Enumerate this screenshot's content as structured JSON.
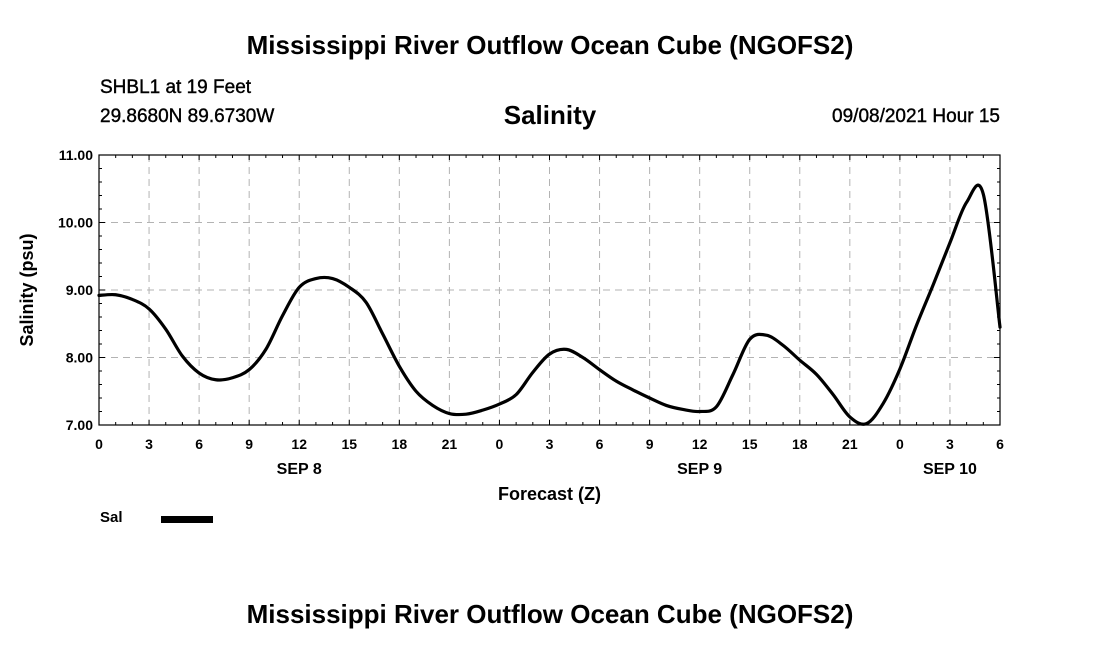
{
  "header": {
    "main_title": "Mississippi River Outflow Ocean Cube (NGOFS2)",
    "station": "SHBL1 at 19 Feet",
    "coords": "29.8680N  89.6730W",
    "chart_title": "Salinity",
    "timestamp": "09/08/2021 Hour 15"
  },
  "footer": {
    "title": "Mississippi River Outflow Ocean Cube (NGOFS2)"
  },
  "legend": {
    "label": "Sal"
  },
  "colors": {
    "line": "#000000",
    "grid": "#b3b3b3"
  },
  "chart_data": {
    "type": "line",
    "title": "Salinity",
    "xlabel": "Forecast (Z)",
    "ylabel": "Salinity (psu)",
    "xlim": [
      0,
      54
    ],
    "ylim": [
      7.0,
      11.0
    ],
    "grid": true,
    "legend_position": "bottom-left",
    "x_ticks": [
      0,
      3,
      6,
      9,
      12,
      15,
      18,
      21,
      24,
      27,
      30,
      33,
      36,
      39,
      42,
      45,
      48,
      51,
      54
    ],
    "x_tick_labels": [
      "0",
      "3",
      "6",
      "9",
      "12",
      "15",
      "18",
      "21",
      "0",
      "3",
      "6",
      "9",
      "12",
      "15",
      "18",
      "21",
      "0",
      "3",
      "6"
    ],
    "y_ticks": [
      7.0,
      8.0,
      9.0,
      10.0,
      11.0
    ],
    "y_tick_labels": [
      "7.00",
      "8.00",
      "9.00",
      "10.00",
      "11.00"
    ],
    "date_labels": [
      {
        "x": 12,
        "label": "SEP 8"
      },
      {
        "x": 36,
        "label": "SEP 9"
      },
      {
        "x": 51,
        "label": "SEP 10"
      }
    ],
    "series": [
      {
        "name": "Sal",
        "x": [
          0,
          1,
          2,
          3,
          4,
          5,
          6,
          7,
          8,
          9,
          10,
          11,
          12,
          13,
          14,
          15,
          16,
          17,
          18,
          19,
          20,
          21,
          22,
          23,
          24,
          25,
          26,
          27,
          28,
          29,
          30,
          31,
          32,
          33,
          34,
          35,
          36,
          37,
          38,
          39,
          40,
          41,
          42,
          43,
          44,
          45,
          46,
          47,
          48,
          49,
          50,
          51,
          52,
          53,
          54
        ],
        "values": [
          8.92,
          8.93,
          8.86,
          8.72,
          8.42,
          8.02,
          7.77,
          7.67,
          7.7,
          7.82,
          8.12,
          8.62,
          9.04,
          9.17,
          9.17,
          9.04,
          8.82,
          8.35,
          7.87,
          7.5,
          7.29,
          7.17,
          7.16,
          7.22,
          7.31,
          7.45,
          7.78,
          8.05,
          8.12,
          8.0,
          7.82,
          7.65,
          7.52,
          7.4,
          7.29,
          7.23,
          7.2,
          7.27,
          7.75,
          8.27,
          8.33,
          8.18,
          7.96,
          7.75,
          7.45,
          7.12,
          7.02,
          7.32,
          7.83,
          8.48,
          9.08,
          9.7,
          10.3,
          10.42,
          8.45
        ]
      }
    ]
  }
}
